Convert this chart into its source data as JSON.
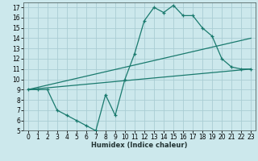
{
  "background_color": "#cce8ec",
  "grid_color": "#aacdd4",
  "line_color": "#1a7a6e",
  "xlim": [
    -0.5,
    23.5
  ],
  "ylim": [
    5,
    17.5
  ],
  "xticks": [
    0,
    1,
    2,
    3,
    4,
    5,
    6,
    7,
    8,
    9,
    10,
    11,
    12,
    13,
    14,
    15,
    16,
    17,
    18,
    19,
    20,
    21,
    22,
    23
  ],
  "yticks": [
    5,
    6,
    7,
    8,
    9,
    10,
    11,
    12,
    13,
    14,
    15,
    16,
    17
  ],
  "xlabel": "Humidex (Indice chaleur)",
  "xlabel_fontsize": 6,
  "tick_fontsize": 5.5,
  "line1_x": [
    0,
    1,
    2,
    3,
    4,
    5,
    6,
    7,
    8,
    9,
    10,
    11,
    12,
    13,
    14,
    15,
    16,
    17,
    18,
    19,
    20,
    21,
    22,
    23
  ],
  "line1_y": [
    9,
    9,
    9,
    7,
    6.5,
    6,
    5.5,
    5,
    8.5,
    6.5,
    10,
    12.5,
    15.7,
    17,
    16.5,
    17.2,
    16.2,
    16.2,
    15,
    14.2,
    12,
    11.2,
    11,
    11
  ],
  "line2_x": [
    0,
    23
  ],
  "line2_y": [
    9,
    11
  ],
  "line3_x": [
    0,
    23
  ],
  "line3_y": [
    9,
    14
  ]
}
